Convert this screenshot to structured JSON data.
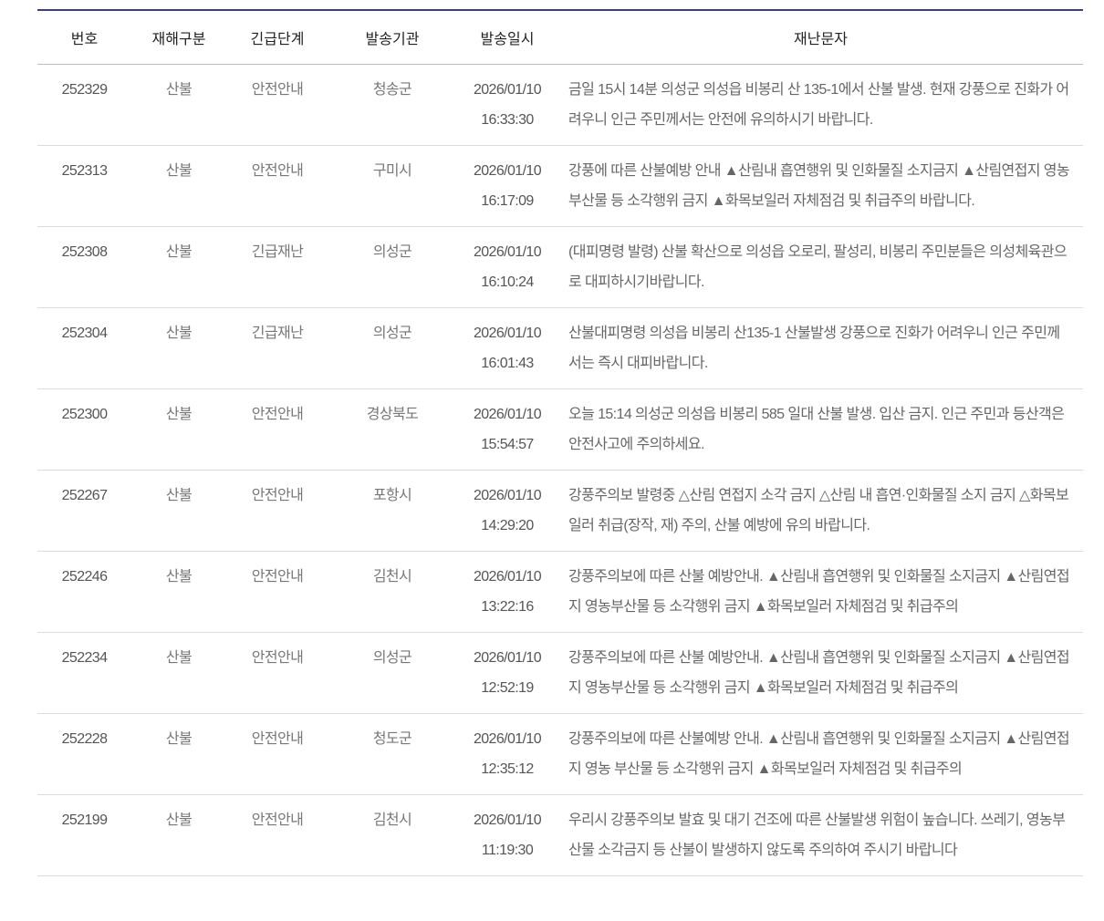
{
  "headers": [
    "번호",
    "재해구분",
    "긴급단계",
    "발송기관",
    "발송일시",
    "재난문자"
  ],
  "rows": [
    {
      "no": "252329",
      "type": "산불",
      "level": "안전안내",
      "agency": "청송군",
      "date": "2026/01/10",
      "time": "16:33:30",
      "message": "금일 15시 14분 의성군 의성읍 비봉리 산 135-1에서 산불 발생. 현재 강풍으로 진화가 어려우니 인근 주민께서는 안전에 유의하시기 바랍니다."
    },
    {
      "no": "252313",
      "type": "산불",
      "level": "안전안내",
      "agency": "구미시",
      "date": "2026/01/10",
      "time": "16:17:09",
      "message": "강풍에 따른 산불예방 안내 ▲산림내 흡연행위 및 인화물질 소지금지 ▲산림연접지 영농부산물 등 소각행위 금지 ▲화목보일러 자체점검 및 취급주의 바랍니다."
    },
    {
      "no": "252308",
      "type": "산불",
      "level": "긴급재난",
      "agency": "의성군",
      "date": "2026/01/10",
      "time": "16:10:24",
      "message": "(대피명령 발령) 산불 확산으로 의성읍 오로리, 팔성리, 비봉리 주민분들은 의성체육관으로 대피하시기바랍니다."
    },
    {
      "no": "252304",
      "type": "산불",
      "level": "긴급재난",
      "agency": "의성군",
      "date": "2026/01/10",
      "time": "16:01:43",
      "message": "산불대피명령 의성읍 비봉리 산135-1 산불발생 강풍으로 진화가 어려우니 인근 주민께서는 즉시 대피바랍니다."
    },
    {
      "no": "252300",
      "type": "산불",
      "level": "안전안내",
      "agency": "경상북도",
      "date": "2026/01/10",
      "time": "15:54:57",
      "message": "오늘 15:14 의성군 의성읍 비봉리 585 일대 산불 발생. 입산 금지. 인근 주민과 등산객은 안전사고에 주의하세요."
    },
    {
      "no": "252267",
      "type": "산불",
      "level": "안전안내",
      "agency": "포항시",
      "date": "2026/01/10",
      "time": "14:29:20",
      "message": "강풍주의보 발령중 △산림 연접지 소각 금지 △산림 내 흡연·인화물질 소지 금지 △화목보일러 취급(장작, 재) 주의, 산불 예방에 유의 바랍니다."
    },
    {
      "no": "252246",
      "type": "산불",
      "level": "안전안내",
      "agency": "김천시",
      "date": "2026/01/10",
      "time": "13:22:16",
      "message": "강풍주의보에 따른 산불 예방안내. ▲산림내 흡연행위 및 인화물질 소지금지 ▲산림연접지 영농부산물 등 소각행위 금지 ▲화목보일러 자체점검 및 취급주의"
    },
    {
      "no": "252234",
      "type": "산불",
      "level": "안전안내",
      "agency": "의성군",
      "date": "2026/01/10",
      "time": "12:52:19",
      "message": "강풍주의보에 따른 산불 예방안내. ▲산림내 흡연행위 및 인화물질 소지금지 ▲산림연접지 영농부산물 등 소각행위 금지 ▲화목보일러 자체점검 및 취급주의"
    },
    {
      "no": "252228",
      "type": "산불",
      "level": "안전안내",
      "agency": "청도군",
      "date": "2026/01/10",
      "time": "12:35:12",
      "message": "강풍주의보에 따른 산불예방 안내. ▲산림내 흡연행위 및 인화물질 소지금지 ▲산림연접지 영농 부산물 등 소각행위 금지 ▲화목보일러 자체점검 및 취급주의"
    },
    {
      "no": "252199",
      "type": "산불",
      "level": "안전안내",
      "agency": "김천시",
      "date": "2026/01/10",
      "time": "11:19:30",
      "message": "우리시 강풍주의보 발효 및 대기 건조에 따른 산불발생 위험이 높습니다. 쓰레기, 영농부산물 소각금지 등 산불이 발생하지 않도록 주의하여 주시기 바랍니다"
    }
  ],
  "colors": {
    "header_border": "#3c4079",
    "text": "#666666"
  }
}
